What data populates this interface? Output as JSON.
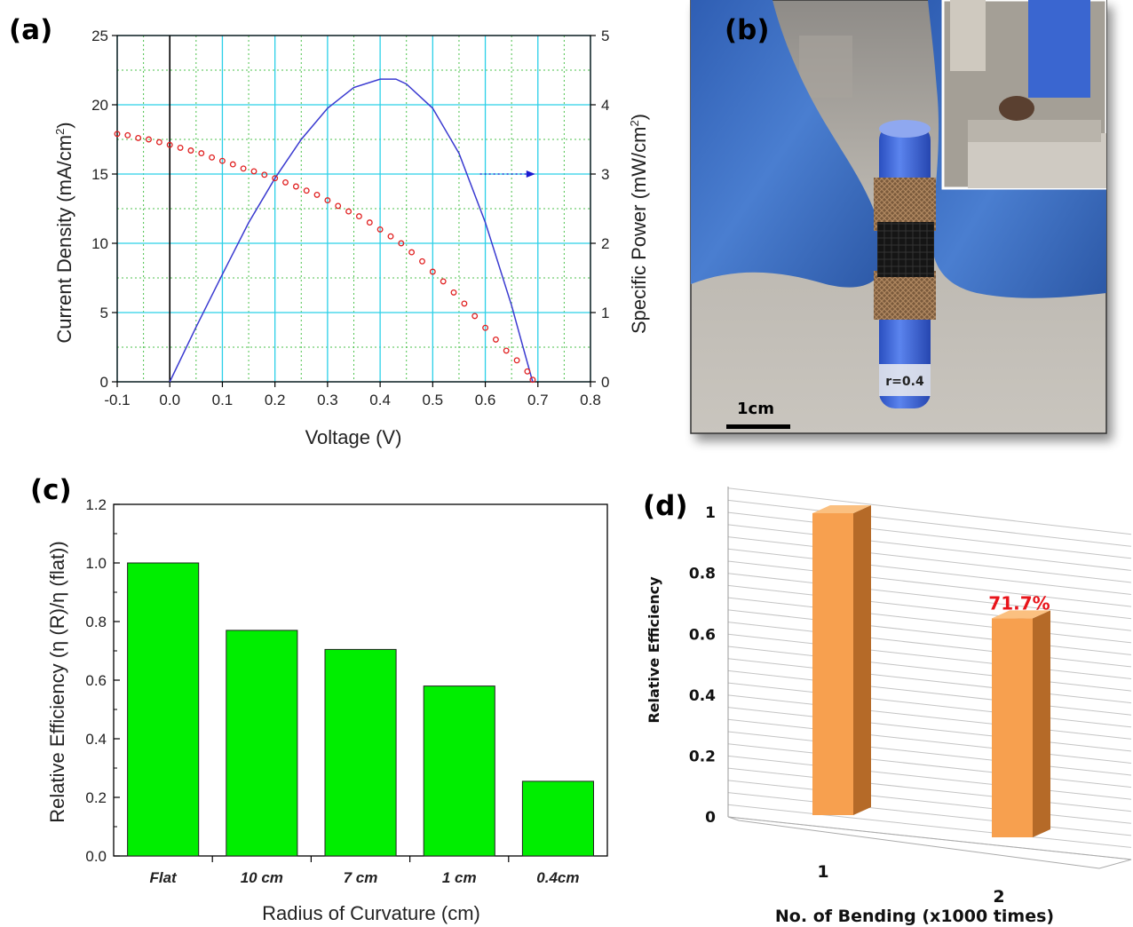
{
  "panels": {
    "a_label": "(a)",
    "b_label": "(b)",
    "c_label": "(c)",
    "d_label": "(d)"
  },
  "photo": {
    "scale_bar_label": "1cm",
    "tube_label_text": "r=0.4",
    "colors": {
      "background": "#bcb7ae",
      "glove": "#3e6fc0",
      "tube": "#3d67d6",
      "mesh": "#8a6a4a",
      "band": "#1a1a1a"
    }
  },
  "chart_data": [
    {
      "panel": "(a)",
      "type": "line",
      "xlabel": "Voltage (V)",
      "ylabel": "Current Density (mA/cm2)",
      "ylabel_main": "Current Density (mA/cm",
      "ylabel_sup": "2",
      "ylabel_end": ")",
      "y2label": "Specific Power (mW/cm2)",
      "y2label_main": "Specific Power (mW/cm",
      "y2label_sup": "2",
      "y2label_end": ")",
      "xlim": [
        -0.1,
        0.8
      ],
      "ylim": [
        0,
        25
      ],
      "y2lim": [
        0,
        5
      ],
      "x_ticks": [
        "-0.1",
        "0.0",
        "0.1",
        "0.2",
        "0.3",
        "0.4",
        "0.5",
        "0.6",
        "0.7",
        "0.8"
      ],
      "y_ticks": [
        "0",
        "5",
        "10",
        "15",
        "20",
        "25"
      ],
      "y2_ticks": [
        "0",
        "1",
        "2",
        "3",
        "4",
        "5"
      ],
      "grid": true,
      "series": [
        {
          "role": "current density (left axis)",
          "style": "open red circles",
          "color": "#e02020",
          "x": [
            -0.1,
            -0.08,
            -0.06,
            -0.04,
            -0.02,
            0.0,
            0.02,
            0.04,
            0.06,
            0.08,
            0.1,
            0.12,
            0.14,
            0.16,
            0.18,
            0.2,
            0.22,
            0.24,
            0.26,
            0.28,
            0.3,
            0.32,
            0.34,
            0.36,
            0.38,
            0.4,
            0.42,
            0.44,
            0.46,
            0.48,
            0.5,
            0.52,
            0.54,
            0.56,
            0.58,
            0.6,
            0.62,
            0.64,
            0.66,
            0.68,
            0.69
          ],
          "y": [
            17.9,
            17.8,
            17.6,
            17.5,
            17.3,
            17.1,
            16.9,
            16.7,
            16.5,
            16.2,
            15.95,
            15.7,
            15.4,
            15.2,
            14.95,
            14.7,
            14.4,
            14.1,
            13.8,
            13.5,
            13.1,
            12.7,
            12.3,
            11.95,
            11.5,
            11.0,
            10.5,
            10.0,
            9.35,
            8.7,
            7.95,
            7.25,
            6.45,
            5.65,
            4.75,
            3.9,
            3.05,
            2.25,
            1.55,
            0.75,
            0.15
          ]
        },
        {
          "role": "specific power (right axis)",
          "style": "blue line",
          "color": "#3a3ad0",
          "x": [
            0.0,
            0.05,
            0.1,
            0.15,
            0.2,
            0.25,
            0.3,
            0.35,
            0.4,
            0.43,
            0.45,
            0.5,
            0.55,
            0.6,
            0.65,
            0.67,
            0.69
          ],
          "y": [
            0.0,
            0.79,
            1.55,
            2.3,
            2.94,
            3.5,
            3.95,
            4.25,
            4.37,
            4.37,
            4.3,
            3.95,
            3.3,
            2.3,
            1.1,
            0.55,
            0.0
          ]
        }
      ],
      "annotations": [
        {
          "type": "arrow",
          "points_to": "right axis",
          "color": "#1a1ad0"
        }
      ]
    },
    {
      "panel": "(c)",
      "type": "bar",
      "categories": [
        "Flat",
        "10 cm",
        "7 cm",
        "1 cm",
        "0.4cm"
      ],
      "values": [
        1.0,
        0.77,
        0.705,
        0.58,
        0.255
      ],
      "ylim": [
        0,
        1.2
      ],
      "y_ticks": [
        "0.0",
        "0.2",
        "0.4",
        "0.6",
        "0.8",
        "1.0",
        "1.2"
      ],
      "xlabel": "Radius of Curvature (cm)",
      "ylabel": "Relative Efficiency (η (R)/η (flat))",
      "colors": {
        "bar": "#00ee00",
        "edge": "#222222"
      }
    },
    {
      "panel": "(d)",
      "type": "bar",
      "style": "3d column",
      "categories": [
        "1",
        "2"
      ],
      "values": [
        1.0,
        0.717
      ],
      "data_labels": [
        "",
        "71.7%"
      ],
      "ylim": [
        0,
        1
      ],
      "y_ticks": [
        "0",
        "0.2",
        "0.4",
        "0.6",
        "0.8",
        "1"
      ],
      "xlabel": "No. of Bending (x1000 times)",
      "ylabel": "Relative Efficiency",
      "colors": {
        "bar_front": "#f7a04f",
        "bar_side": "#b56a28",
        "bar_top": "#fbc080",
        "label": "#e8151b"
      }
    }
  ]
}
